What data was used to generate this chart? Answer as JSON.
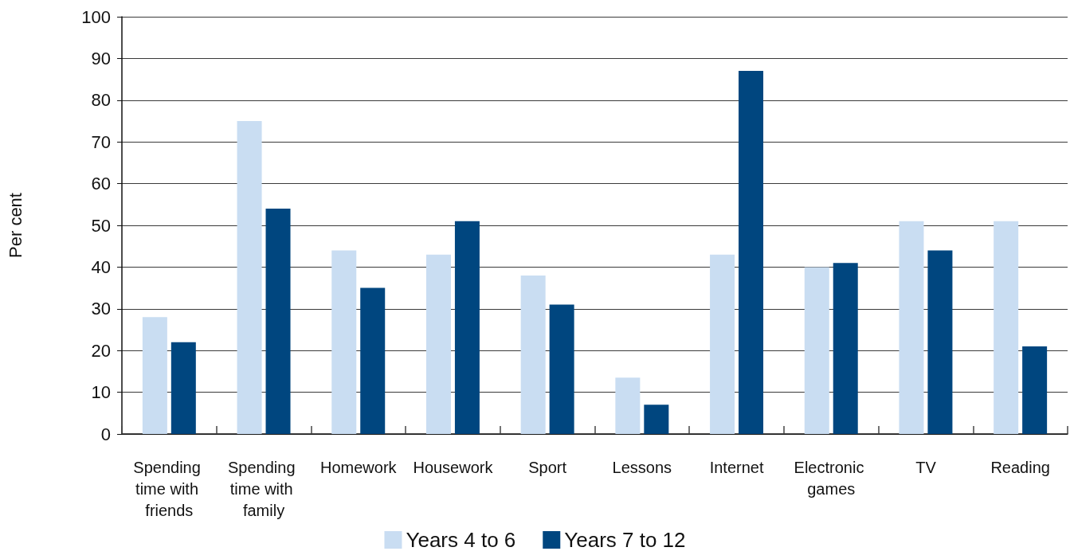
{
  "chart_data": {
    "type": "bar",
    "ylabel": "Per cent",
    "categories": [
      "Spending time with friends",
      "Spending time with family",
      "Homework",
      "Housework",
      "Sport",
      "Lessons",
      "Internet",
      "Electronic games",
      "TV",
      "Reading"
    ],
    "series": [
      {
        "name": "Years 4 to 6",
        "color": "#c9ddf2",
        "values": [
          28,
          75,
          44,
          43,
          38,
          13.5,
          43,
          40,
          51,
          51
        ]
      },
      {
        "name": "Years 7 to 12",
        "color": "#00467f",
        "values": [
          22,
          54,
          35,
          51,
          31,
          7,
          87,
          41,
          44,
          21
        ]
      }
    ],
    "ylim": [
      0,
      100
    ],
    "yticks": [
      0,
      10,
      20,
      30,
      40,
      50,
      60,
      70,
      80,
      90,
      100
    ],
    "grid": "y",
    "legend": "bottom"
  }
}
